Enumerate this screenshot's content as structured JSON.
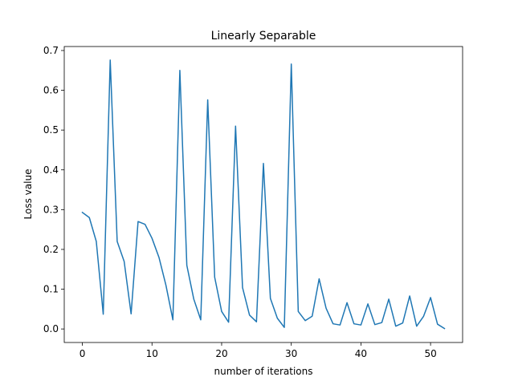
{
  "chart_data": {
    "type": "line",
    "title": "Linearly Separable",
    "xlabel": "number of iterations",
    "ylabel": "Loss value",
    "xlim": [
      -2.6,
      54.6
    ],
    "ylim": [
      -0.034,
      0.71
    ],
    "xticks": [
      0,
      10,
      20,
      30,
      40,
      50
    ],
    "xtick_labels": [
      "0",
      "10",
      "20",
      "30",
      "40",
      "50"
    ],
    "yticks": [
      0.0,
      0.1,
      0.2,
      0.3,
      0.4,
      0.5,
      0.6,
      0.7
    ],
    "ytick_labels": [
      "0.0",
      "0.1",
      "0.2",
      "0.3",
      "0.4",
      "0.5",
      "0.6",
      "0.7"
    ],
    "grid": false,
    "series": [
      {
        "color": "#1f77b4",
        "x": [
          0,
          1,
          2,
          3,
          4,
          5,
          6,
          7,
          8,
          9,
          10,
          11,
          12,
          13,
          14,
          15,
          16,
          17,
          18,
          19,
          20,
          21,
          22,
          23,
          24,
          25,
          26,
          27,
          28,
          29,
          30,
          31,
          32,
          33,
          34,
          35,
          36,
          37,
          38,
          39,
          40,
          41,
          42,
          43,
          44,
          45,
          46,
          47,
          48,
          49,
          50,
          51,
          52
        ],
        "y": [
          0.293,
          0.28,
          0.22,
          0.037,
          0.676,
          0.22,
          0.17,
          0.038,
          0.27,
          0.263,
          0.228,
          0.18,
          0.11,
          0.023,
          0.65,
          0.16,
          0.075,
          0.023,
          0.576,
          0.13,
          0.044,
          0.017,
          0.51,
          0.104,
          0.035,
          0.018,
          0.416,
          0.077,
          0.027,
          0.004,
          0.666,
          0.044,
          0.021,
          0.032,
          0.126,
          0.052,
          0.013,
          0.01,
          0.066,
          0.013,
          0.01,
          0.063,
          0.011,
          0.016,
          0.075,
          0.007,
          0.015,
          0.083,
          0.007,
          0.032,
          0.079,
          0.012,
          0.001
        ]
      }
    ]
  }
}
